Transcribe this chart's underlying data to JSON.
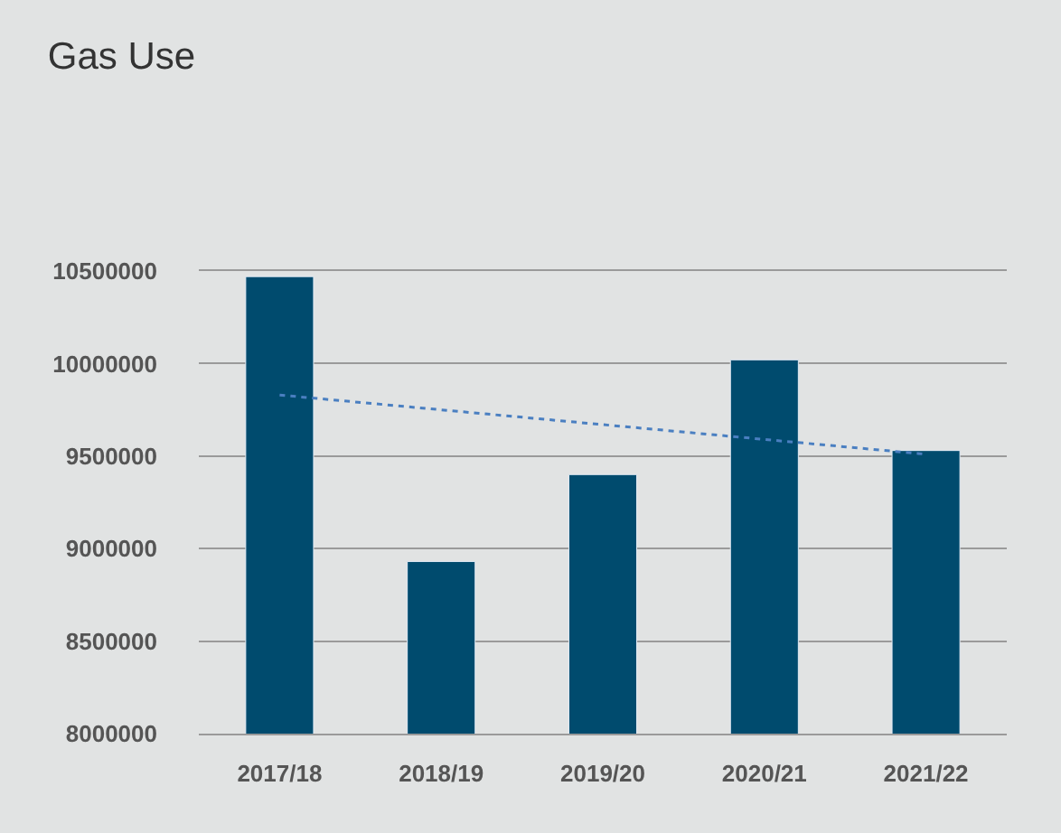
{
  "chart_data": {
    "type": "bar",
    "title": "Gas Use",
    "categories": [
      "2017/18",
      "2018/19",
      "2019/20",
      "2020/21",
      "2021/22"
    ],
    "series": [
      {
        "color": "#004b6e",
        "values": [
          10470000,
          8930000,
          9400000,
          10020000,
          9530000
        ]
      },
      {
        "type": "line",
        "color": "#4a7fc1",
        "line_style": "dotted",
        "marker": "none",
        "x": [
          "2017/18",
          "2021/22"
        ],
        "values": [
          9830000,
          9510000
        ]
      }
    ],
    "ylim": [
      8000000,
      10500000
    ],
    "yticks": [
      8000000,
      8500000,
      9000000,
      9500000,
      10000000,
      10500000
    ],
    "grid": "y"
  }
}
